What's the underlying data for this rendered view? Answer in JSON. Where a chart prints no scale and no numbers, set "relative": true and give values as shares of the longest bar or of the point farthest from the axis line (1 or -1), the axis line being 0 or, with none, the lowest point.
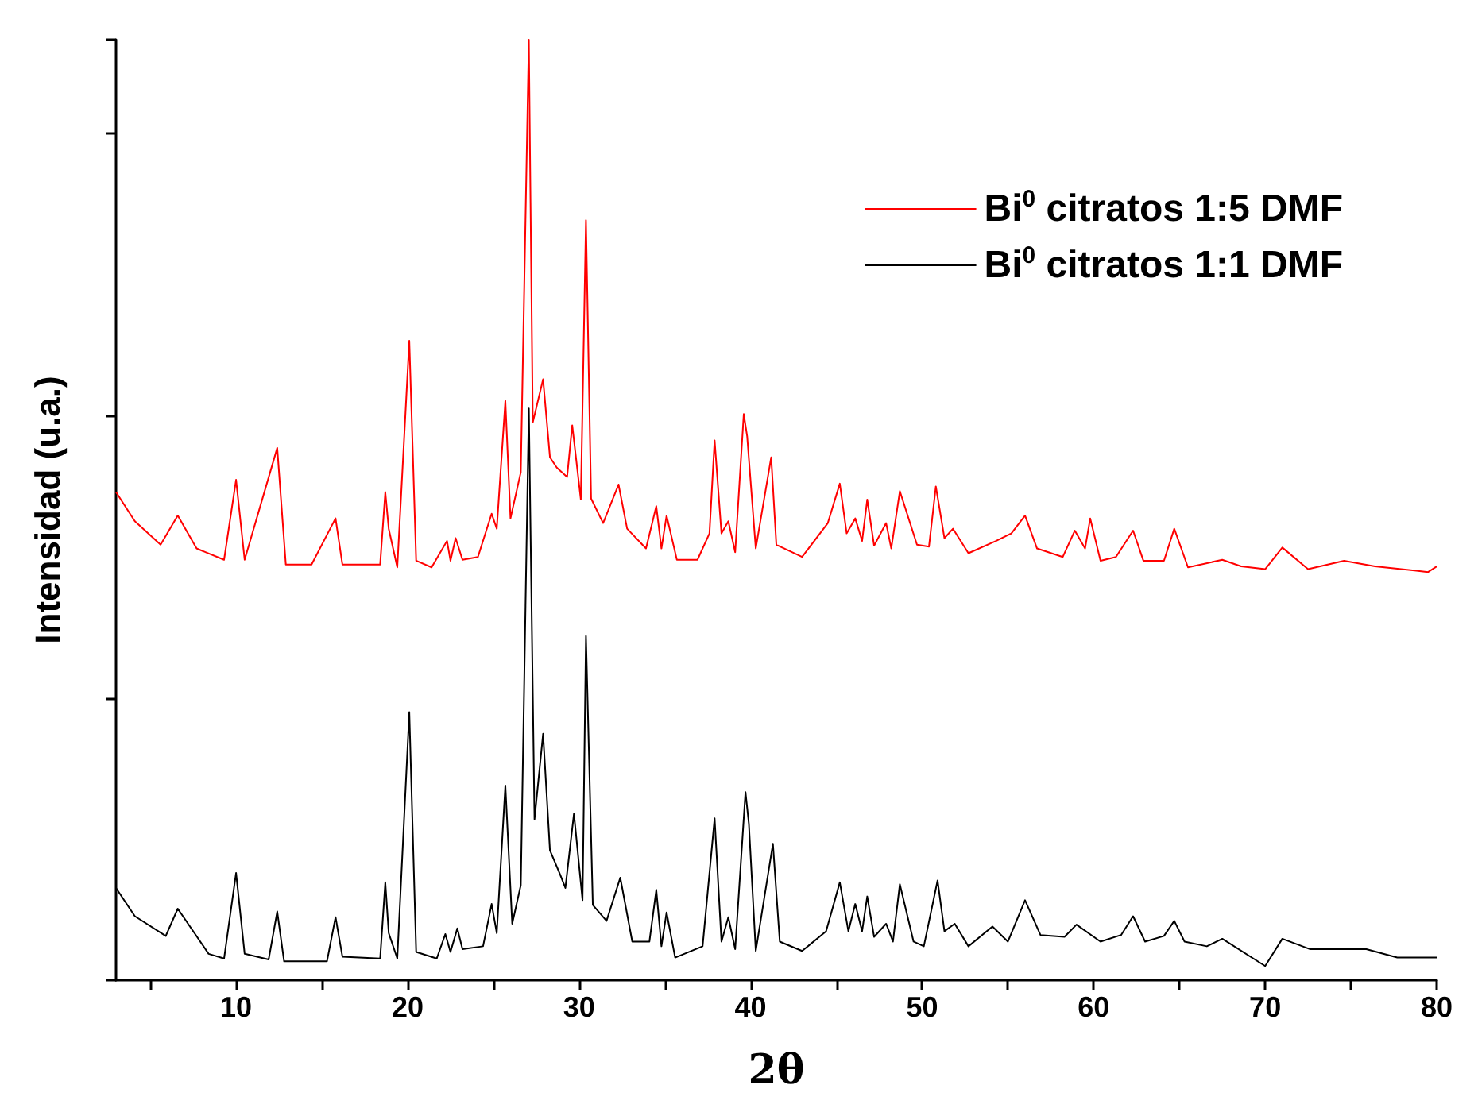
{
  "chart_data": {
    "type": "line",
    "xlabel": "2θ",
    "ylabel": "Intensidad (u.a.)",
    "relative": true,
    "xlim": [
      3,
      80
    ],
    "xticks": [
      {
        "value": 5,
        "label": null
      },
      10,
      {
        "value": 15,
        "label": null
      },
      20,
      {
        "value": 25,
        "label": null
      },
      30,
      {
        "value": 35,
        "label": null
      },
      40,
      {
        "value": 45,
        "label": null
      },
      50,
      {
        "value": 55,
        "label": null
      },
      60,
      {
        "value": 65,
        "label": null
      },
      70,
      {
        "value": 75,
        "label": null
      },
      80
    ],
    "legend": "top right",
    "grid": false,
    "marker": "none",
    "line_style": "solid",
    "series": [
      {
        "name": "Bi$^{0}$ citratos 1:5 DMF",
        "color": "#ff0000",
        "x": [
          3,
          4.1,
          5.6,
          6.6,
          7.7,
          9.3,
          10.0,
          10.5,
          12.4,
          12.9,
          14.4,
          15.8,
          16.2,
          18.4,
          18.7,
          18.9,
          19.4,
          20.1,
          20.5,
          21.4,
          22.3,
          22.5,
          22.8,
          23.2,
          24.1,
          24.9,
          25.2,
          25.7,
          26.0,
          26.6,
          27.07,
          27.3,
          27.9,
          28.3,
          28.7,
          29.3,
          29.6,
          30.1,
          30.4,
          30.7,
          31.4,
          32.3,
          32.8,
          33.9,
          34.5,
          34.8,
          35.1,
          35.7,
          36.9,
          37.6,
          37.9,
          38.3,
          38.7,
          39.1,
          39.6,
          39.8,
          40.3,
          41.2,
          41.5,
          43.0,
          44.5,
          45.2,
          45.6,
          46.1,
          46.5,
          46.8,
          47.2,
          47.9,
          48.2,
          48.7,
          49.7,
          50.4,
          50.8,
          51.3,
          51.8,
          52.7,
          54.3,
          55.2,
          56.0,
          56.7,
          58.2,
          58.9,
          59.5,
          59.8,
          60.4,
          61.3,
          62.3,
          62.9,
          64.1,
          64.7,
          65.5,
          67.5,
          68.6,
          70.0,
          71.0,
          72.5,
          74.6,
          76.4,
          79.5,
          80
        ],
        "values": [
          0.519,
          0.488,
          0.463,
          0.494,
          0.459,
          0.447,
          0.532,
          0.447,
          0.566,
          0.442,
          0.442,
          0.491,
          0.442,
          0.442,
          0.519,
          0.48,
          0.439,
          0.68,
          0.446,
          0.439,
          0.467,
          0.446,
          0.47,
          0.447,
          0.45,
          0.496,
          0.48,
          0.616,
          0.491,
          0.54,
          1.0,
          0.593,
          0.639,
          0.556,
          0.545,
          0.535,
          0.59,
          0.511,
          0.808,
          0.512,
          0.486,
          0.527,
          0.48,
          0.459,
          0.504,
          0.459,
          0.494,
          0.447,
          0.447,
          0.475,
          0.574,
          0.475,
          0.488,
          0.455,
          0.602,
          0.578,
          0.459,
          0.556,
          0.463,
          0.45,
          0.486,
          0.528,
          0.475,
          0.491,
          0.467,
          0.511,
          0.462,
          0.486,
          0.459,
          0.52,
          0.463,
          0.461,
          0.525,
          0.47,
          0.48,
          0.454,
          0.467,
          0.475,
          0.494,
          0.459,
          0.45,
          0.478,
          0.459,
          0.491,
          0.446,
          0.45,
          0.478,
          0.446,
          0.446,
          0.48,
          0.439,
          0.447,
          0.44,
          0.437,
          0.46,
          0.437,
          0.446,
          0.44,
          0.434,
          0.44
        ]
      },
      {
        "name": "Bi$^{0}$ citratos 1:1 DMF",
        "color": "#000000",
        "x": [
          3,
          4.1,
          5.9,
          6.6,
          8.4,
          9.3,
          10.0,
          10.5,
          11.9,
          12.4,
          12.8,
          15.3,
          15.8,
          16.2,
          18.4,
          18.7,
          18.9,
          19.4,
          20.1,
          20.5,
          21.7,
          22.2,
          22.5,
          22.9,
          23.2,
          24.4,
          24.9,
          25.2,
          25.7,
          26.1,
          26.6,
          27.07,
          27.4,
          27.9,
          28.3,
          28.9,
          29.2,
          29.7,
          30.2,
          30.4,
          30.8,
          31.6,
          32.4,
          33.1,
          34.1,
          34.5,
          34.8,
          35.1,
          35.6,
          37.2,
          37.9,
          38.3,
          38.7,
          39.1,
          39.7,
          39.9,
          40.3,
          41.3,
          41.7,
          43.0,
          44.4,
          45.2,
          45.7,
          46.1,
          46.5,
          46.8,
          47.2,
          47.9,
          48.3,
          48.7,
          49.5,
          50.1,
          50.9,
          51.3,
          51.9,
          52.7,
          54.1,
          55.0,
          56.0,
          56.9,
          58.3,
          59.0,
          60.4,
          61.6,
          62.3,
          63.0,
          64.1,
          64.7,
          65.3,
          66.6,
          67.5,
          70.0,
          71.0,
          72.6,
          75.9,
          77.7,
          80
        ],
        "values": [
          0.098,
          0.068,
          0.047,
          0.076,
          0.028,
          0.023,
          0.114,
          0.028,
          0.022,
          0.073,
          0.02,
          0.02,
          0.067,
          0.025,
          0.023,
          0.104,
          0.05,
          0.023,
          0.285,
          0.03,
          0.023,
          0.049,
          0.03,
          0.055,
          0.033,
          0.036,
          0.081,
          0.05,
          0.207,
          0.06,
          0.101,
          0.608,
          0.171,
          0.262,
          0.138,
          0.112,
          0.098,
          0.177,
          0.085,
          0.366,
          0.08,
          0.063,
          0.109,
          0.041,
          0.041,
          0.096,
          0.036,
          0.072,
          0.024,
          0.036,
          0.172,
          0.041,
          0.067,
          0.033,
          0.2,
          0.166,
          0.031,
          0.145,
          0.041,
          0.031,
          0.052,
          0.104,
          0.052,
          0.081,
          0.052,
          0.089,
          0.046,
          0.06,
          0.041,
          0.102,
          0.041,
          0.036,
          0.106,
          0.052,
          0.06,
          0.036,
          0.057,
          0.041,
          0.085,
          0.048,
          0.046,
          0.059,
          0.041,
          0.048,
          0.068,
          0.041,
          0.047,
          0.063,
          0.041,
          0.036,
          0.044,
          0.015,
          0.044,
          0.033,
          0.033,
          0.024,
          0.024
        ]
      }
    ]
  }
}
